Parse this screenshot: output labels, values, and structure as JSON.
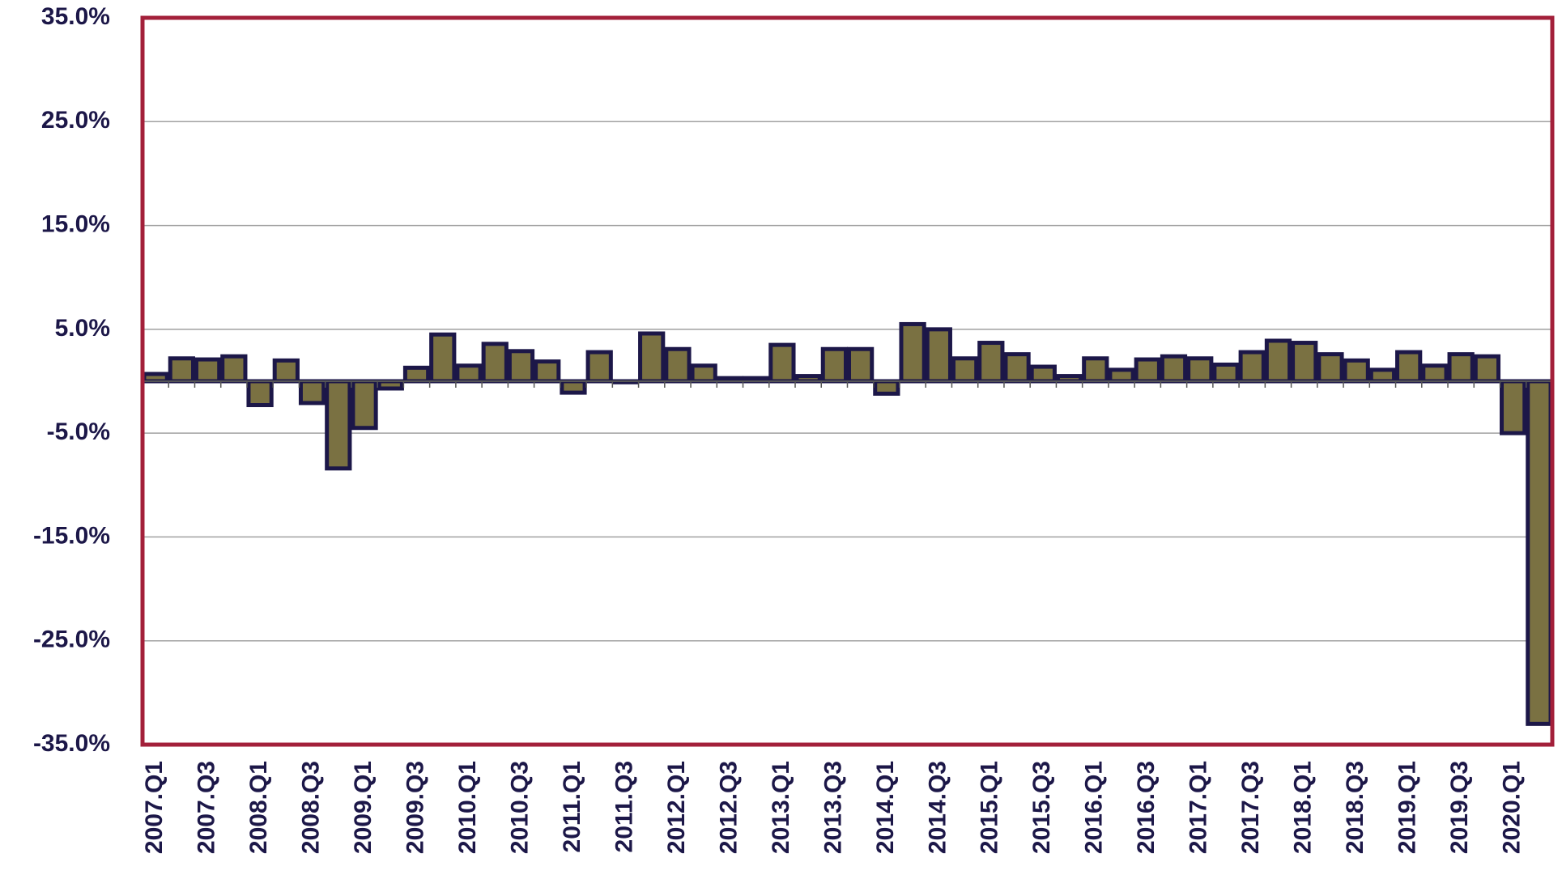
{
  "chart_data": {
    "type": "bar",
    "categories": [
      "2007.Q1",
      null,
      "2007.Q3",
      null,
      "2008.Q1",
      null,
      "2008.Q3",
      null,
      "2009.Q1",
      null,
      "2009.Q3",
      null,
      "2010.Q1",
      null,
      "2010.Q3",
      null,
      "2011.Q1",
      null,
      "2011.Q3",
      null,
      "2012.Q1",
      null,
      "2012.Q3",
      null,
      "2013.Q1",
      null,
      "2013.Q3",
      null,
      "2014.Q1",
      null,
      "2014.Q3",
      null,
      "2015.Q1",
      null,
      "2015.Q3",
      null,
      "2016.Q1",
      null,
      "2016.Q3",
      null,
      "2017.Q1",
      null,
      "2017.Q3",
      null,
      "2018.Q1",
      null,
      "2018.Q3",
      null,
      "2019.Q1",
      null,
      "2019.Q3",
      null,
      "2020.Q1",
      null
    ],
    "values": [
      0.7,
      2.2,
      2.1,
      2.4,
      -2.3,
      2.0,
      -2.1,
      -8.4,
      -4.5,
      -0.7,
      1.3,
      4.5,
      1.5,
      3.6,
      2.9,
      1.9,
      -1.1,
      2.8,
      -0.1,
      4.6,
      3.1,
      1.5,
      0.3,
      0.3,
      3.5,
      0.5,
      3.1,
      3.1,
      -1.2,
      5.5,
      5.0,
      2.2,
      3.7,
      2.6,
      1.4,
      0.5,
      2.2,
      1.1,
      2.1,
      2.4,
      2.2,
      1.6,
      2.8,
      3.9,
      3.7,
      2.6,
      2.0,
      1.1,
      2.8,
      1.5,
      2.6,
      2.4,
      -5.0,
      -33.0
    ],
    "color": "#7a7142",
    "edgecolor": "#1c1748",
    "frame_color": "#a3203a",
    "ylim": [
      -35,
      35
    ],
    "yticks": [
      {
        "value": -35,
        "label": "-35.0%"
      },
      {
        "value": -25,
        "label": "-25.0%"
      },
      {
        "value": -15,
        "label": "-15.0%"
      },
      {
        "value": -5,
        "label": "-5.0%"
      },
      {
        "value": 5,
        "label": "5.0%"
      },
      {
        "value": 15,
        "label": "15.0%"
      },
      {
        "value": 25,
        "label": "25.0%"
      },
      {
        "value": 35,
        "label": "35.0%"
      }
    ],
    "grid": true
  }
}
